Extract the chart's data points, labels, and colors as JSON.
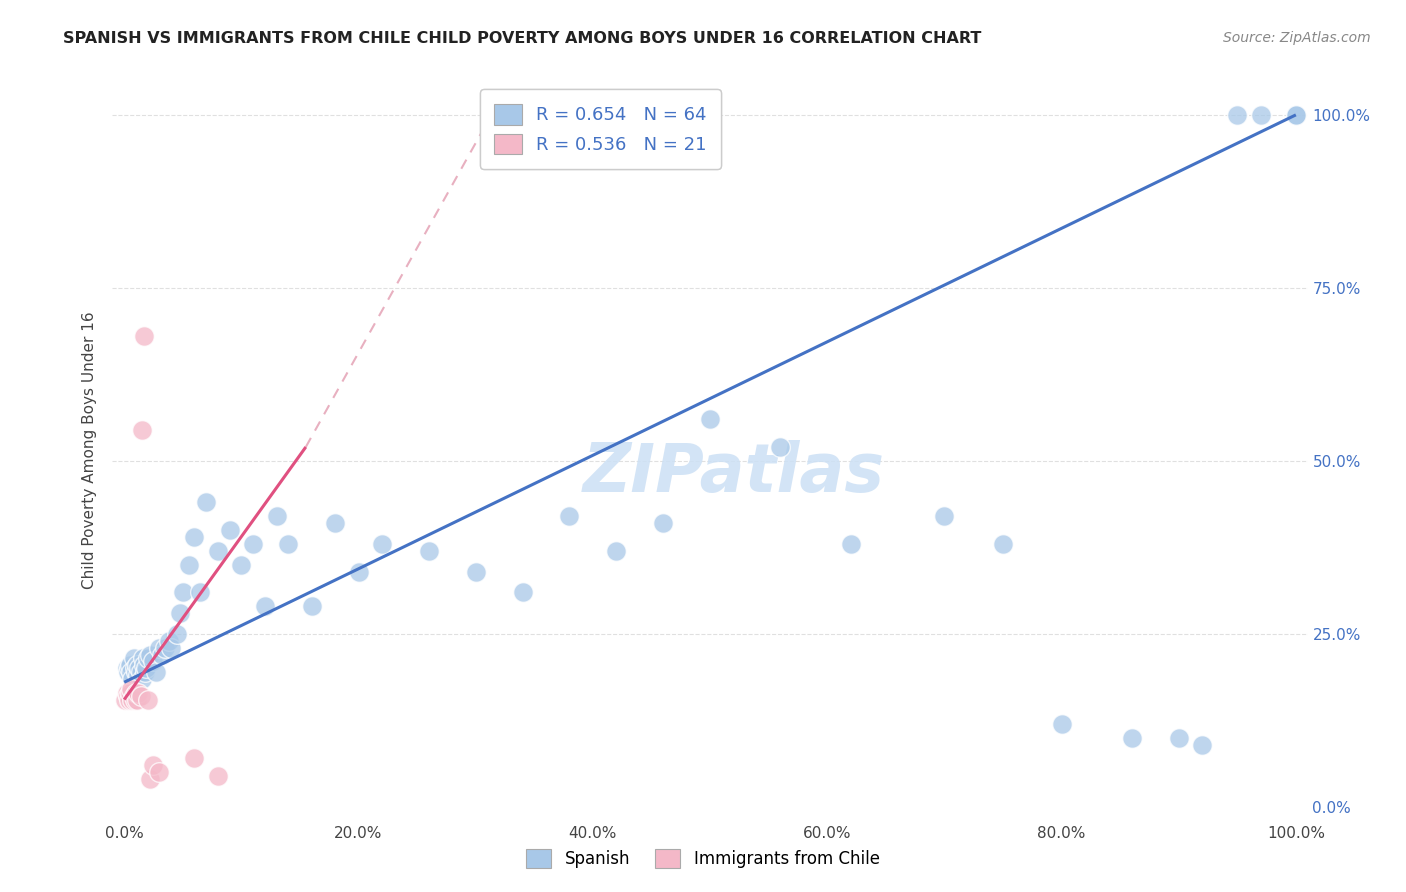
{
  "title": "SPANISH VS IMMIGRANTS FROM CHILE CHILD POVERTY AMONG BOYS UNDER 16 CORRELATION CHART",
  "source": "Source: ZipAtlas.com",
  "ylabel": "Child Poverty Among Boys Under 16",
  "watermark": "ZIPatlas",
  "legend_blue_R": "0.654",
  "legend_blue_N": "64",
  "legend_pink_R": "0.536",
  "legend_pink_N": "21",
  "legend_label_blue": "Spanish",
  "legend_label_pink": "Immigrants from Chile",
  "blue_color": "#a8c8e8",
  "pink_color": "#f4b8c8",
  "trendline_blue_color": "#4472c4",
  "trendline_pink_color": "#e05080",
  "trendline_dashed_color": "#e8b0c0",
  "background_color": "#ffffff",
  "grid_color": "#e0e0e0",
  "blue_points_x": [
    0.002,
    0.003,
    0.004,
    0.005,
    0.006,
    0.007,
    0.008,
    0.009,
    0.01,
    0.011,
    0.012,
    0.013,
    0.014,
    0.015,
    0.016,
    0.017,
    0.018,
    0.019,
    0.02,
    0.022,
    0.025,
    0.027,
    0.03,
    0.032,
    0.035,
    0.038,
    0.04,
    0.045,
    0.048,
    0.05,
    0.055,
    0.06,
    0.065,
    0.07,
    0.08,
    0.09,
    0.1,
    0.11,
    0.12,
    0.13,
    0.14,
    0.16,
    0.18,
    0.2,
    0.22,
    0.26,
    0.3,
    0.34,
    0.38,
    0.42,
    0.46,
    0.5,
    0.56,
    0.62,
    0.7,
    0.75,
    0.8,
    0.86,
    0.9,
    0.92,
    0.95,
    0.97,
    1.0,
    1.0
  ],
  "blue_points_y": [
    0.2,
    0.195,
    0.2,
    0.205,
    0.195,
    0.185,
    0.215,
    0.2,
    0.195,
    0.205,
    0.19,
    0.2,
    0.195,
    0.185,
    0.215,
    0.205,
    0.195,
    0.2,
    0.215,
    0.22,
    0.21,
    0.195,
    0.23,
    0.22,
    0.23,
    0.24,
    0.23,
    0.25,
    0.28,
    0.31,
    0.35,
    0.39,
    0.31,
    0.44,
    0.37,
    0.4,
    0.35,
    0.38,
    0.29,
    0.42,
    0.38,
    0.29,
    0.41,
    0.34,
    0.38,
    0.37,
    0.34,
    0.31,
    0.42,
    0.37,
    0.41,
    0.56,
    0.52,
    0.38,
    0.42,
    0.38,
    0.12,
    0.1,
    0.1,
    0.09,
    1.0,
    1.0,
    1.0,
    1.0
  ],
  "pink_points_x": [
    0.001,
    0.002,
    0.003,
    0.004,
    0.005,
    0.006,
    0.007,
    0.008,
    0.009,
    0.01,
    0.011,
    0.012,
    0.014,
    0.015,
    0.017,
    0.02,
    0.022,
    0.025,
    0.03,
    0.06,
    0.08
  ],
  "pink_points_y": [
    0.155,
    0.165,
    0.16,
    0.155,
    0.165,
    0.17,
    0.155,
    0.16,
    0.155,
    0.165,
    0.155,
    0.165,
    0.16,
    0.545,
    0.68,
    0.155,
    0.04,
    0.06,
    0.05,
    0.07,
    0.045
  ]
}
